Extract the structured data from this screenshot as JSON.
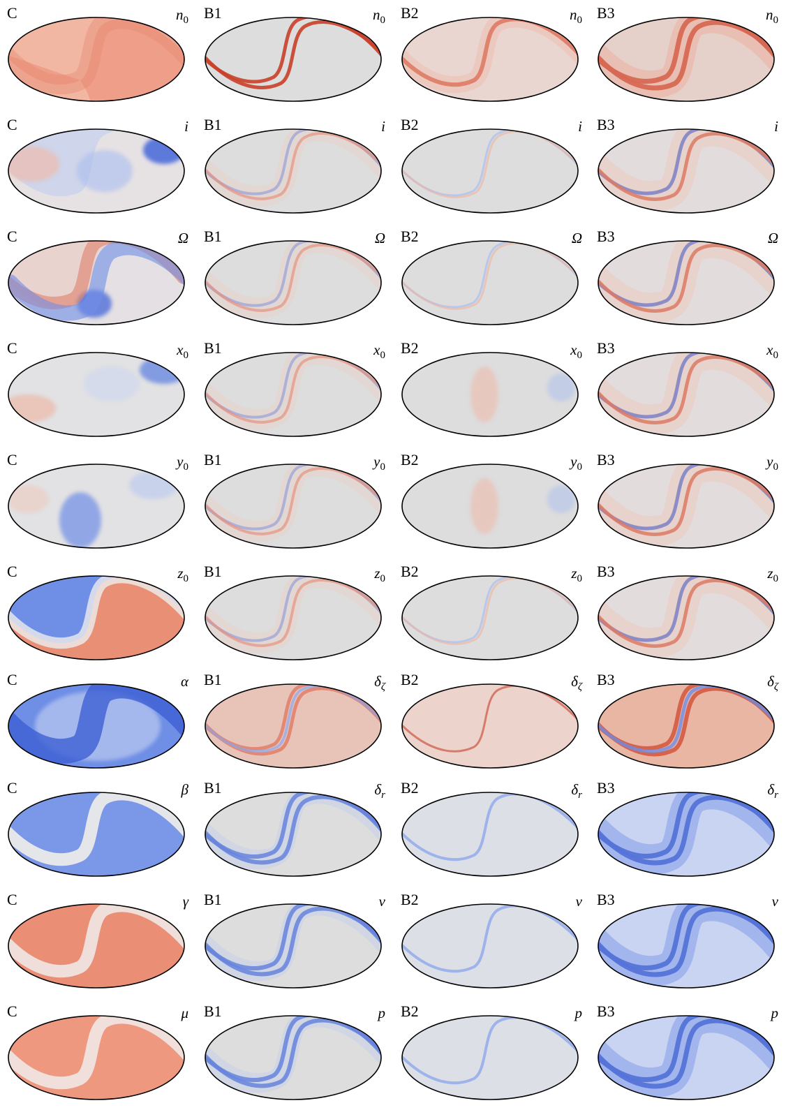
{
  "columns": [
    "C",
    "B1",
    "B2",
    "B3"
  ],
  "rows": [
    {
      "labels": [
        [
          "n",
          "0"
        ],
        [
          "n",
          "0"
        ],
        [
          "n",
          "0"
        ],
        [
          "n",
          "0"
        ]
      ],
      "styles": [
        "Cn",
        "Rd2",
        "Rd1",
        "Rd3"
      ]
    },
    {
      "labels": [
        [
          "i",
          ""
        ],
        [
          "i",
          ""
        ],
        [
          "i",
          ""
        ],
        [
          "i",
          ""
        ]
      ],
      "styles": [
        "Ci",
        "Mx2",
        "Mx1",
        "Mx3"
      ]
    },
    {
      "labels": [
        [
          "Ω",
          ""
        ],
        [
          "Ω",
          ""
        ],
        [
          "Ω",
          ""
        ],
        [
          "Ω",
          ""
        ]
      ],
      "styles": [
        "CO",
        "Mx2",
        "Mx1",
        "Mx3"
      ]
    },
    {
      "labels": [
        [
          "x",
          "0"
        ],
        [
          "x",
          "0"
        ],
        [
          "x",
          "0"
        ],
        [
          "x",
          "0"
        ]
      ],
      "styles": [
        "Cx",
        "Mx2",
        "Mx0",
        "Mx3"
      ]
    },
    {
      "labels": [
        [
          "y",
          "0"
        ],
        [
          "y",
          "0"
        ],
        [
          "y",
          "0"
        ],
        [
          "y",
          "0"
        ]
      ],
      "styles": [
        "Cy",
        "Mx2",
        "Mx0",
        "Mx3"
      ]
    },
    {
      "labels": [
        [
          "z",
          "0"
        ],
        [
          "z",
          "0"
        ],
        [
          "z",
          "0"
        ],
        [
          "z",
          "0"
        ]
      ],
      "styles": [
        "Cz",
        "Mx2",
        "Mx1",
        "Mx3"
      ]
    },
    {
      "labels": [
        [
          "α",
          ""
        ],
        [
          "δ",
          "ζ"
        ],
        [
          "δ",
          "ζ"
        ],
        [
          "δ",
          "ζ"
        ]
      ],
      "styles": [
        "Ca",
        "Rb2",
        "Rb1",
        "Rb3"
      ]
    },
    {
      "labels": [
        [
          "β",
          ""
        ],
        [
          "δ",
          "r"
        ],
        [
          "δ",
          "r"
        ],
        [
          "δ",
          "r"
        ]
      ],
      "styles": [
        "Cb",
        "Bl2",
        "Bl1",
        "Bl3"
      ]
    },
    {
      "labels": [
        [
          "γ",
          ""
        ],
        [
          "v",
          ""
        ],
        [
          "v",
          ""
        ],
        [
          "v",
          ""
        ]
      ],
      "styles": [
        "Cg",
        "Bl2",
        "Bl1",
        "Bl3"
      ]
    },
    {
      "labels": [
        [
          "μ",
          ""
        ],
        [
          "p",
          ""
        ],
        [
          "p",
          ""
        ],
        [
          "p",
          ""
        ]
      ],
      "styles": [
        "Cm",
        "Bl2",
        "Bl1",
        "Bl3"
      ]
    }
  ],
  "colors": {
    "red": "#c8402a",
    "blue": "#3a5fd8",
    "neutral": "#dddddd",
    "outline": "#000000"
  }
}
